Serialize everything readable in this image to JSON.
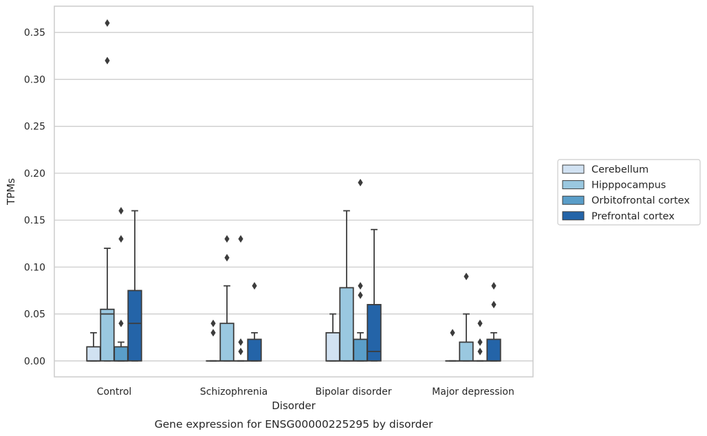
{
  "chart_data": {
    "type": "box",
    "caption": "Gene expression for ENSG00000225295 by disorder",
    "xlabel": "Disorder",
    "ylabel": "TPMs",
    "ylim": [
      -0.017,
      0.378
    ],
    "yticks": [
      0.0,
      0.05,
      0.1,
      0.15,
      0.2,
      0.25,
      0.3,
      0.35
    ],
    "ytick_labels": [
      "0.00",
      "0.05",
      "0.10",
      "0.15",
      "0.20",
      "0.25",
      "0.30",
      "0.35"
    ],
    "grid": "horizontal",
    "legend_position": "right",
    "categories": [
      "Control",
      "Schizophrenia",
      "Bipolar disorder",
      "Major depression"
    ],
    "series": [
      {
        "name": "Cerebellum",
        "color": "#d1e2f2",
        "boxes": [
          {
            "whisker_low": 0.0,
            "q1": 0.0,
            "median": 0.0,
            "q3": 0.015,
            "whisker_high": 0.03,
            "outliers": []
          },
          {
            "whisker_low": 0.0,
            "q1": 0.0,
            "median": 0.0,
            "q3": 0.0,
            "whisker_high": 0.0,
            "outliers": [
              0.03,
              0.04
            ]
          },
          {
            "whisker_low": 0.0,
            "q1": 0.0,
            "median": 0.0,
            "q3": 0.03,
            "whisker_high": 0.05,
            "outliers": []
          },
          {
            "whisker_low": 0.0,
            "q1": 0.0,
            "median": 0.0,
            "q3": 0.0,
            "whisker_high": 0.0,
            "outliers": [
              0.03
            ]
          }
        ]
      },
      {
        "name": "Hipppocampus",
        "color": "#9ac8e0",
        "boxes": [
          {
            "whisker_low": 0.0,
            "q1": 0.0,
            "median": 0.05,
            "q3": 0.055,
            "whisker_high": 0.12,
            "outliers": [
              0.32,
              0.36
            ]
          },
          {
            "whisker_low": 0.0,
            "q1": 0.0,
            "median": 0.0,
            "q3": 0.04,
            "whisker_high": 0.08,
            "outliers": [
              0.11,
              0.13
            ]
          },
          {
            "whisker_low": 0.0,
            "q1": 0.0,
            "median": 0.0,
            "q3": 0.078,
            "whisker_high": 0.16,
            "outliers": []
          },
          {
            "whisker_low": 0.0,
            "q1": 0.0,
            "median": 0.0,
            "q3": 0.02,
            "whisker_high": 0.05,
            "outliers": [
              0.09
            ]
          }
        ]
      },
      {
        "name": "Orbitofrontal cortex",
        "color": "#5a9ec9",
        "boxes": [
          {
            "whisker_low": 0.0,
            "q1": 0.0,
            "median": 0.0,
            "q3": 0.015,
            "whisker_high": 0.02,
            "outliers": [
              0.04,
              0.13,
              0.16
            ]
          },
          {
            "whisker_low": 0.0,
            "q1": 0.0,
            "median": 0.0,
            "q3": 0.0,
            "whisker_high": 0.0,
            "outliers": [
              0.01,
              0.02,
              0.13
            ]
          },
          {
            "whisker_low": 0.0,
            "q1": 0.0,
            "median": 0.0,
            "q3": 0.023,
            "whisker_high": 0.03,
            "outliers": [
              0.07,
              0.08,
              0.19
            ]
          },
          {
            "whisker_low": 0.0,
            "q1": 0.0,
            "median": 0.0,
            "q3": 0.0,
            "whisker_high": 0.0,
            "outliers": [
              0.01,
              0.02,
              0.04
            ]
          }
        ]
      },
      {
        "name": "Prefrontal cortex",
        "color": "#2464a8",
        "boxes": [
          {
            "whisker_low": 0.0,
            "q1": 0.0,
            "median": 0.04,
            "q3": 0.075,
            "whisker_high": 0.16,
            "outliers": []
          },
          {
            "whisker_low": 0.0,
            "q1": 0.0,
            "median": 0.0,
            "q3": 0.023,
            "whisker_high": 0.03,
            "outliers": [
              0.08
            ]
          },
          {
            "whisker_low": 0.0,
            "q1": 0.0,
            "median": 0.01,
            "q3": 0.06,
            "whisker_high": 0.14,
            "outliers": []
          },
          {
            "whisker_low": 0.0,
            "q1": 0.0,
            "median": 0.0,
            "q3": 0.023,
            "whisker_high": 0.03,
            "outliers": [
              0.06,
              0.08
            ]
          }
        ]
      }
    ]
  }
}
